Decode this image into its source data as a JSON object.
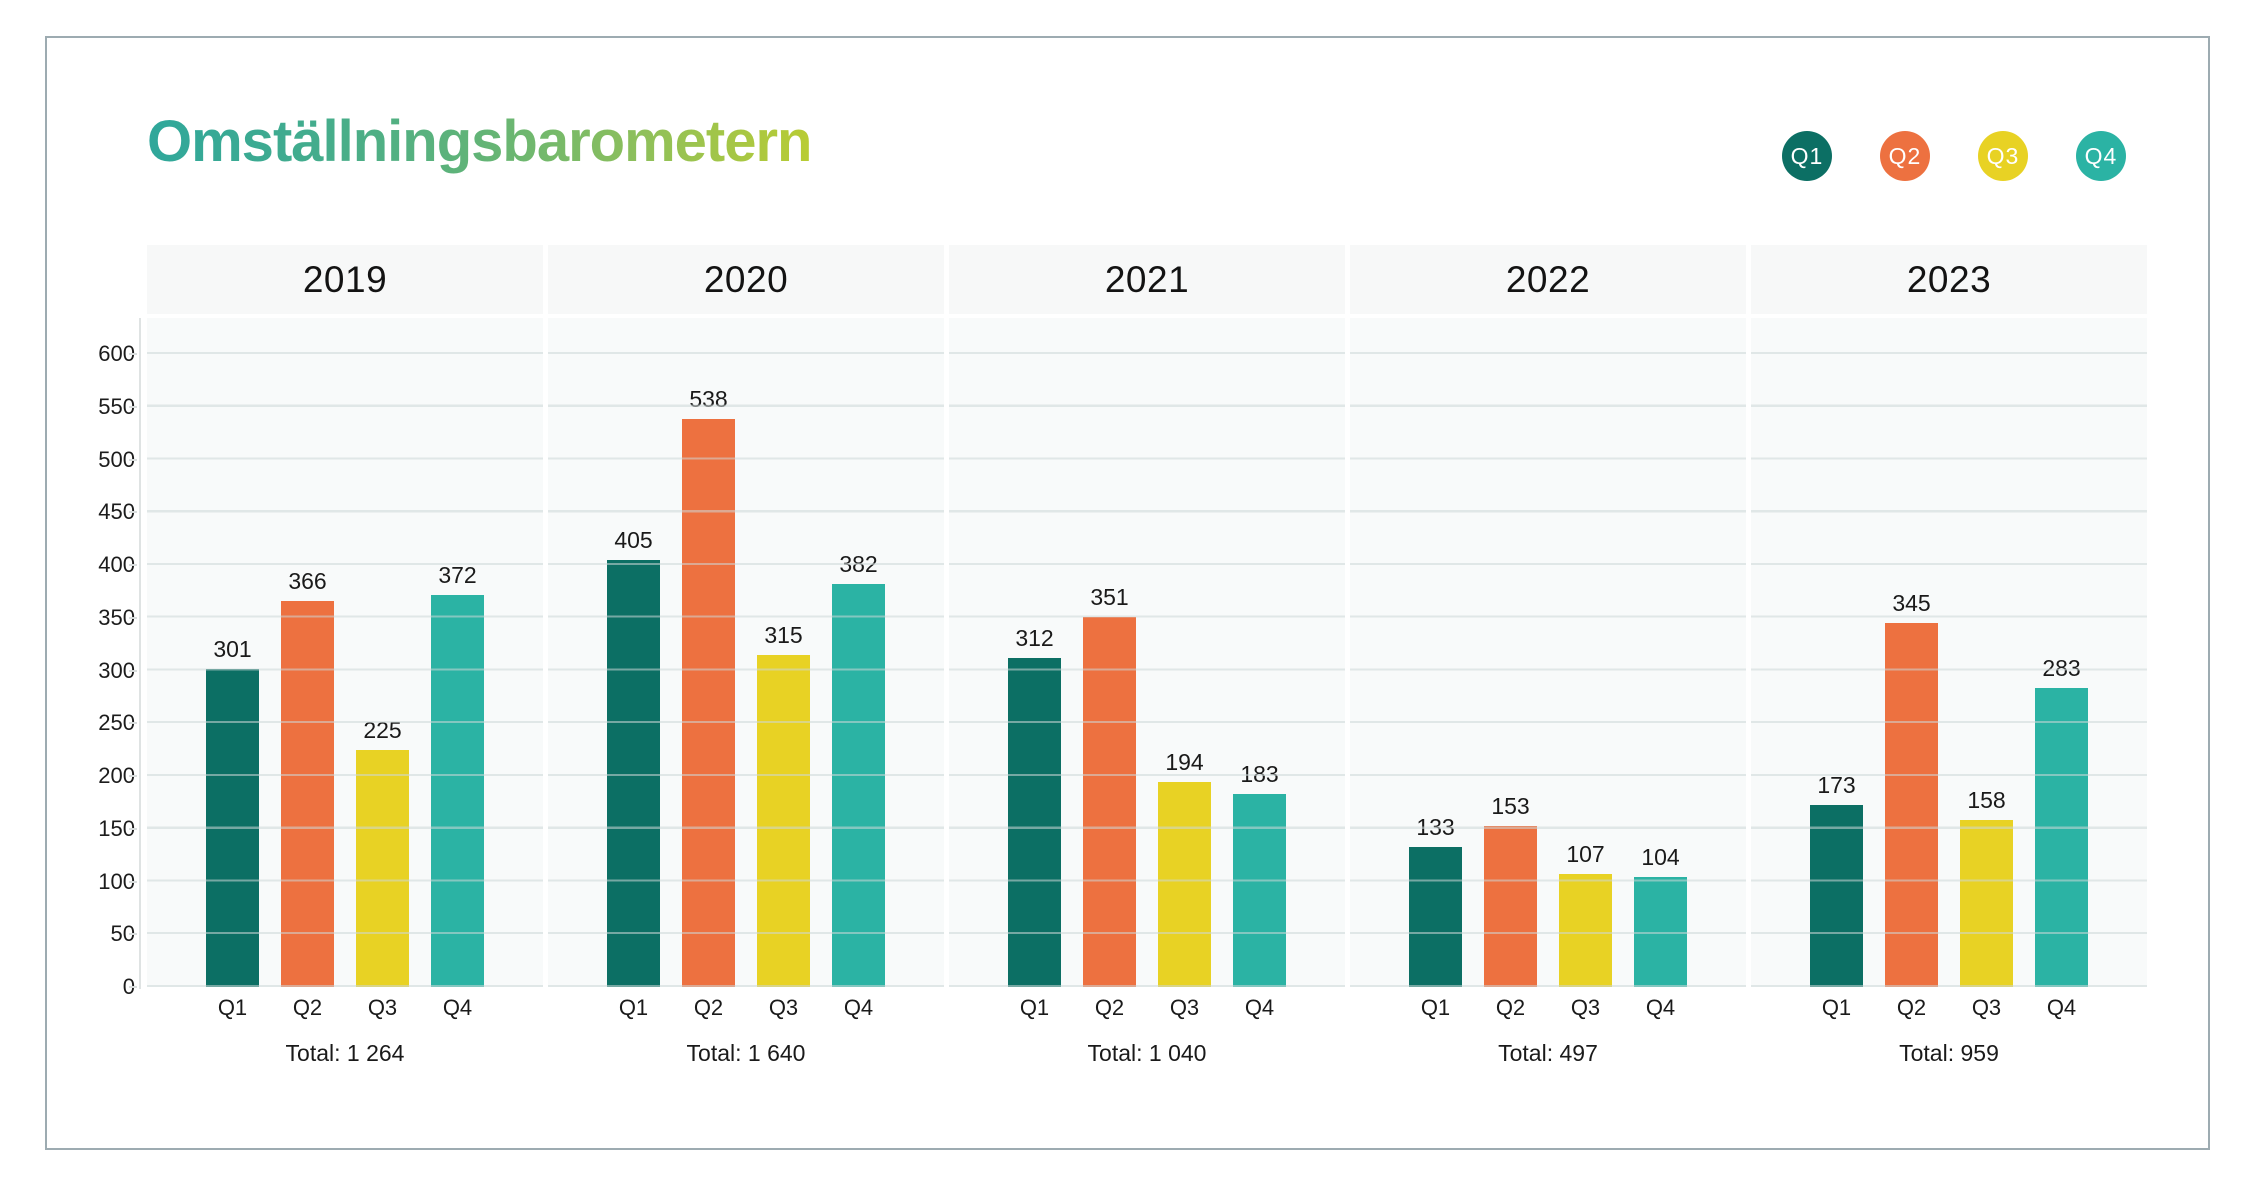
{
  "title": "Omställningsbarometern",
  "legend": [
    {
      "label": "Q1",
      "color": "#0C6F64"
    },
    {
      "label": "Q2",
      "color": "#ED7140"
    },
    {
      "label": "Q3",
      "color": "#E8D224"
    },
    {
      "label": "Q4",
      "color": "#2BB3A4"
    }
  ],
  "chart_data": {
    "type": "bar",
    "title": "Omställningsbarometern",
    "quarter_labels": [
      "Q1",
      "Q2",
      "Q3",
      "Q4"
    ],
    "categories": [
      "2019",
      "2020",
      "2021",
      "2022",
      "2023"
    ],
    "series": [
      {
        "name": "Q1",
        "color": "#0C6F64",
        "values": [
          301,
          405,
          312,
          133,
          173
        ]
      },
      {
        "name": "Q2",
        "color": "#ED7140",
        "values": [
          366,
          538,
          351,
          153,
          345
        ]
      },
      {
        "name": "Q3",
        "color": "#E8D224",
        "values": [
          225,
          315,
          194,
          107,
          158
        ]
      },
      {
        "name": "Q4",
        "color": "#2BB3A4",
        "values": [
          372,
          382,
          183,
          104,
          283
        ]
      }
    ],
    "groups": [
      {
        "year": "2019",
        "values": [
          301,
          366,
          225,
          372
        ],
        "total_label": "Total: 1 264"
      },
      {
        "year": "2020",
        "values": [
          405,
          538,
          315,
          382
        ],
        "total_label": "Total: 1 640"
      },
      {
        "year": "2021",
        "values": [
          312,
          351,
          194,
          183
        ],
        "total_label": "Total: 1 040"
      },
      {
        "year": "2022",
        "values": [
          133,
          153,
          107,
          104
        ],
        "total_label": "Total: 497"
      },
      {
        "year": "2023",
        "values": [
          173,
          345,
          158,
          283
        ],
        "total_label": "Total: 959"
      }
    ],
    "yticks": [
      600,
      550,
      500,
      450,
      400,
      350,
      300,
      250,
      200,
      150,
      100,
      50,
      0
    ],
    "ylim": [
      0,
      600
    ],
    "grid": true,
    "legend_position": "top-right",
    "colors": {
      "panel_background": "#f7f8f8",
      "grid_line": "#e9eaea",
      "card_border": "#9dabb1",
      "title_gradient_start": "#2fa79b",
      "title_gradient_end": "#b9cc33"
    }
  }
}
